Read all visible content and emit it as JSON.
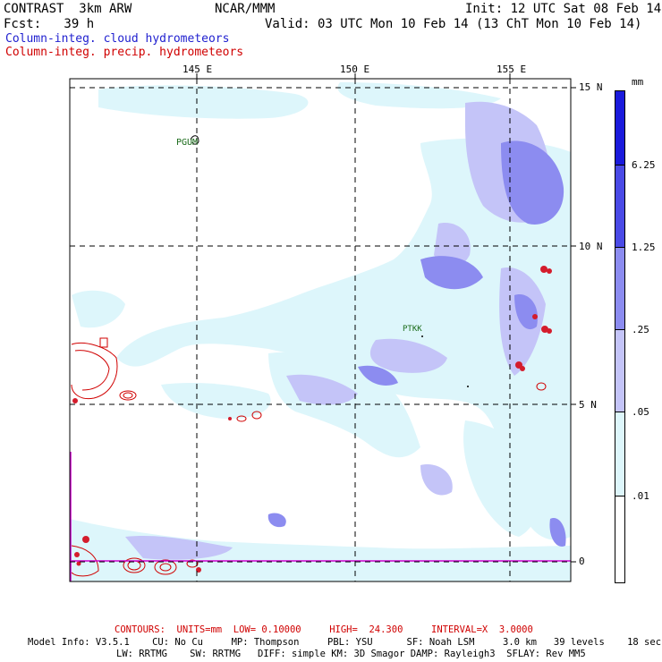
{
  "header": {
    "model": "CONTRAST  3km ARW",
    "org": "NCAR/MMM",
    "init": "Init: 12 UTC Sat 08 Feb 14",
    "fcst": "Fcst:   39 h",
    "valid": "Valid: 03 UTC Mon 10 Feb 14 (13 ChT Mon 10 Feb 14)",
    "field_cloud": "Column-integ. cloud hydrometeors",
    "field_precip": "Column-integ. precip. hydrometeors"
  },
  "axes": {
    "lon_labels": [
      "145 E",
      "150 E",
      "155 E"
    ],
    "lat_labels": [
      "15 N",
      "10 N",
      "5 N",
      "0"
    ]
  },
  "stations": [
    "PGUM",
    "PTKK"
  ],
  "colorbar": {
    "units": "mm",
    "levels": [
      "6.25",
      "1.25",
      ".25",
      ".05",
      ".01"
    ],
    "colors": [
      "#1a1adc",
      "#4a4ae6",
      "#8c8cf0",
      "#c4c4f8",
      "#ddf6fb",
      "#ffffff"
    ]
  },
  "footer": {
    "contours": "CONTOURS:  UNITS=mm  LOW= 0.10000     HIGH=  24.300     INTERVAL=X  3.0000",
    "info1": "Model Info: V3.5.1    CU: No Cu     MP: Thompson     PBL: YSU      SF: Noah LSM     3.0 km   39 levels    18 sec",
    "info2": "LW: RRTMG    SW: RRTMG   DIFF: simple KM: 3D Smagor DAMP: Rayleigh3  SFLAY: Rev MM5"
  }
}
